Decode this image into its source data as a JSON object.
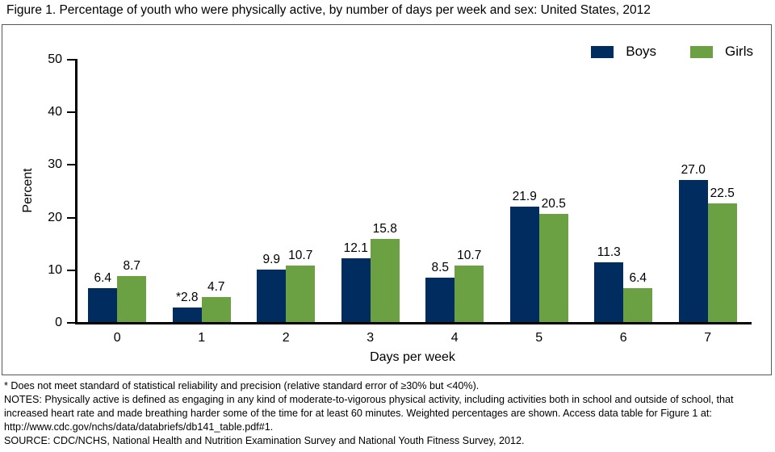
{
  "figure": {
    "title": "Figure 1. Percentage of youth who were physically active, by number of days per week and sex: United States, 2012"
  },
  "chart_data": {
    "type": "bar",
    "title": "Figure 1. Percentage of youth who were physically active, by number of days per week and sex: United States, 2012",
    "categories": [
      "0",
      "1",
      "2",
      "3",
      "4",
      "5",
      "6",
      "7"
    ],
    "series": [
      {
        "name": "Boys",
        "color": "#002c5f",
        "values": [
          6.4,
          2.8,
          9.9,
          12.1,
          8.5,
          21.9,
          11.3,
          27.0
        ],
        "labels": [
          "6.4",
          "*2.8",
          "9.9",
          "12.1",
          "8.5",
          "21.9",
          "11.3",
          "27.0"
        ]
      },
      {
        "name": "Girls",
        "color": "#6ba043",
        "values": [
          8.7,
          4.7,
          10.7,
          15.8,
          10.7,
          20.5,
          6.4,
          22.5
        ],
        "labels": [
          "8.7",
          "4.7",
          "10.7",
          "15.8",
          "10.7",
          "20.5",
          "6.4",
          "22.5"
        ]
      }
    ],
    "xlabel": "Days per week",
    "ylabel": "Percent",
    "ylim": [
      0,
      50
    ],
    "ytick_step": 10,
    "grid": false,
    "legend_position": "top-right"
  },
  "footnotes": {
    "asterisk": "* Does not meet standard of statistical reliability and precision (relative standard error of ≥30% but <40%).",
    "notes": "NOTES: Physically active is defined as engaging in any kind of moderate-to-vigorous physical activity, including activities both in school and outside of school, that increased heart rate and made breathing harder some of the time for at least 60 minutes. Weighted percentages are shown. Access data table for Figure 1 at: http://www.cdc.gov/nchs/data/databriefs/db141_table.pdf#1.",
    "source": "SOURCE: CDC/NCHS, National Health and Nutrition Examination Survey and National Youth Fitness Survey, 2012."
  }
}
